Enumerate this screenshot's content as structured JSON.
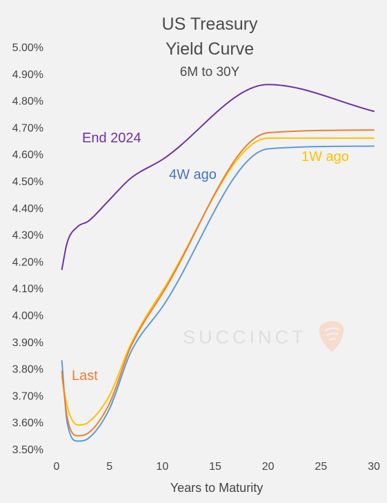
{
  "chart_data": {
    "type": "line",
    "title": "US Treasury Yield Curve",
    "title_lines": [
      "US Treasury",
      "Yield Curve"
    ],
    "subtitle": "6M to 30Y",
    "xlabel": "Years to Maturity",
    "ylabel": "",
    "xlim": [
      0,
      30
    ],
    "ylim": [
      3.5,
      5.0
    ],
    "x_ticks": [
      0,
      5,
      10,
      15,
      20,
      25,
      30
    ],
    "y_ticks": [
      "3.50%",
      "3.60%",
      "3.70%",
      "3.80%",
      "3.90%",
      "4.00%",
      "4.10%",
      "4.20%",
      "4.30%",
      "4.40%",
      "4.50%",
      "4.60%",
      "4.70%",
      "4.80%",
      "4.90%",
      "5.00%"
    ],
    "grid": false,
    "legend": "none",
    "x": [
      0.5,
      1,
      2,
      3,
      5,
      7,
      10,
      20,
      30
    ],
    "series": [
      {
        "name": "End 2024",
        "color": "#7030a0",
        "values": [
          4.17,
          4.27,
          4.33,
          4.35,
          4.43,
          4.51,
          4.58,
          4.86,
          4.76
        ]
      },
      {
        "name": "4W ago",
        "color": "#5b9bd5",
        "values": [
          3.83,
          3.6,
          3.53,
          3.54,
          3.65,
          3.86,
          4.03,
          4.62,
          4.63
        ]
      },
      {
        "name": "1W ago",
        "color": "#ffc000",
        "values": [
          3.77,
          3.66,
          3.59,
          3.6,
          3.7,
          3.89,
          4.09,
          4.66,
          4.66
        ]
      },
      {
        "name": "Last",
        "color": "#ed7d31",
        "values": [
          3.79,
          3.62,
          3.55,
          3.56,
          3.67,
          3.88,
          4.08,
          4.68,
          4.69
        ]
      }
    ],
    "annotations": [
      "End 2024",
      "4W ago",
      "1W ago",
      "Last"
    ]
  },
  "watermark": {
    "text": "SUCCINCT",
    "icon": "succinct-logo-icon"
  }
}
